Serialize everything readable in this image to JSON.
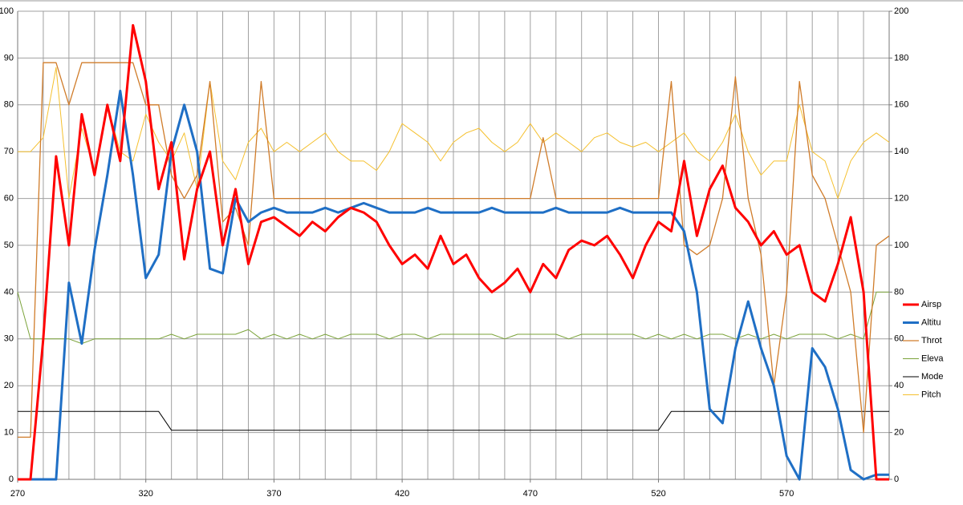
{
  "chart_data": {
    "type": "line",
    "x": [
      270,
      275,
      280,
      285,
      290,
      295,
      300,
      305,
      310,
      315,
      320,
      325,
      330,
      335,
      340,
      345,
      350,
      355,
      360,
      365,
      370,
      375,
      380,
      385,
      390,
      395,
      400,
      405,
      410,
      415,
      420,
      425,
      430,
      435,
      440,
      445,
      450,
      455,
      460,
      465,
      470,
      475,
      480,
      485,
      490,
      495,
      500,
      505,
      510,
      515,
      520,
      525,
      530,
      535,
      540,
      545,
      550,
      555,
      560,
      565,
      570,
      575,
      580,
      585,
      590,
      595,
      600,
      605,
      610
    ],
    "xlim": [
      270,
      610
    ],
    "xticks": [
      270,
      320,
      370,
      420,
      470,
      520,
      570
    ],
    "xgrid": [
      270,
      280,
      290,
      300,
      310,
      320,
      330,
      340,
      350,
      360,
      370,
      380,
      390,
      400,
      410,
      420,
      430,
      440,
      450,
      460,
      470,
      480,
      490,
      500,
      510,
      520,
      530,
      540,
      550,
      560,
      570,
      580,
      590,
      600
    ],
    "ylim": [
      0,
      100
    ],
    "yticks": [
      0,
      10,
      20,
      30,
      40,
      50,
      60,
      70,
      80,
      90,
      100
    ],
    "y2lim": [
      0,
      200
    ],
    "y2ticks": [
      0,
      20,
      40,
      60,
      80,
      100,
      120,
      140,
      160,
      180,
      200
    ],
    "grid": true,
    "legend": "right",
    "series": [
      {
        "name": "Airsp",
        "color": "#ff0000",
        "width": 3,
        "values": [
          0,
          0,
          30,
          69,
          50,
          78,
          65,
          80,
          68,
          97,
          85,
          62,
          72,
          47,
          62,
          70,
          50,
          62,
          46,
          55,
          56,
          54,
          52,
          55,
          53,
          56,
          58,
          57,
          55,
          50,
          46,
          48,
          45,
          52,
          46,
          48,
          43,
          40,
          42,
          45,
          40,
          46,
          43,
          49,
          51,
          50,
          52,
          48,
          43,
          50,
          55,
          53,
          68,
          52,
          62,
          67,
          58,
          55,
          50,
          53,
          48,
          50,
          40,
          38,
          46,
          56,
          40,
          0,
          0
        ]
      },
      {
        "name": "Altitu",
        "color": "#1f6fc5",
        "width": 3,
        "axis": "y2",
        "values": [
          0,
          0,
          0,
          0,
          84,
          58,
          98,
          130,
          166,
          130,
          86,
          96,
          140,
          160,
          140,
          90,
          88,
          120,
          110,
          114,
          116,
          114,
          114,
          114,
          116,
          114,
          116,
          118,
          116,
          114,
          114,
          114,
          116,
          114,
          114,
          114,
          114,
          116,
          114,
          114,
          114,
          114,
          116,
          114,
          114,
          114,
          114,
          116,
          114,
          114,
          114,
          114,
          106,
          80,
          30,
          24,
          56,
          76,
          56,
          40,
          10,
          0,
          56,
          48,
          30,
          4,
          0,
          2,
          2
        ]
      },
      {
        "name": "Throt",
        "color": "#d07c2a",
        "width": 1.3,
        "values": [
          9,
          9,
          89,
          89,
          80,
          89,
          89,
          89,
          89,
          89,
          80,
          80,
          65,
          60,
          65,
          85,
          55,
          58,
          50,
          85,
          60,
          60,
          60,
          60,
          60,
          60,
          60,
          60,
          60,
          60,
          60,
          60,
          60,
          60,
          60,
          60,
          60,
          60,
          60,
          60,
          60,
          73,
          60,
          60,
          60,
          60,
          60,
          60,
          60,
          60,
          60,
          85,
          50,
          48,
          50,
          60,
          86,
          60,
          48,
          20,
          40,
          85,
          65,
          60,
          50,
          40,
          10,
          50,
          52
        ]
      },
      {
        "name": "Eleva",
        "color": "#7ba33a",
        "width": 1,
        "values": [
          40,
          30,
          30,
          30,
          30,
          29,
          30,
          30,
          30,
          30,
          30,
          30,
          31,
          30,
          31,
          31,
          31,
          31,
          32,
          30,
          31,
          30,
          31,
          30,
          31,
          30,
          31,
          31,
          31,
          30,
          31,
          31,
          30,
          31,
          31,
          31,
          31,
          31,
          30,
          31,
          31,
          31,
          31,
          30,
          31,
          31,
          31,
          31,
          31,
          30,
          31,
          30,
          31,
          30,
          31,
          31,
          30,
          31,
          30,
          31,
          30,
          31,
          31,
          31,
          30,
          31,
          30,
          40,
          40
        ]
      },
      {
        "name": "Mode",
        "color": "#000000",
        "width": 1,
        "values": [
          14.5,
          14.5,
          14.5,
          14.5,
          14.5,
          14.5,
          14.5,
          14.5,
          14.5,
          14.5,
          14.5,
          14.5,
          10.5,
          10.5,
          10.5,
          10.5,
          10.5,
          10.5,
          10.5,
          10.5,
          10.5,
          10.5,
          10.5,
          10.5,
          10.5,
          10.5,
          10.5,
          10.5,
          10.5,
          10.5,
          10.5,
          10.5,
          10.5,
          10.5,
          10.5,
          10.5,
          10.5,
          10.5,
          10.5,
          10.5,
          10.5,
          10.5,
          10.5,
          10.5,
          10.5,
          10.5,
          10.5,
          10.5,
          10.5,
          10.5,
          10.5,
          14.5,
          14.5,
          14.5,
          14.5,
          14.5,
          14.5,
          14.5,
          14.5,
          14.5,
          14.5,
          14.5,
          14.5,
          14.5,
          14.5,
          14.5,
          14.5,
          14.5,
          14.5
        ]
      },
      {
        "name": "Pitch",
        "color": "#f5c02e",
        "width": 1,
        "values": [
          70,
          70,
          73,
          88,
          60,
          75,
          66,
          80,
          70,
          68,
          78,
          72,
          68,
          74,
          62,
          85,
          68,
          64,
          72,
          75,
          70,
          72,
          70,
          72,
          74,
          70,
          68,
          68,
          66,
          70,
          76,
          74,
          72,
          68,
          72,
          74,
          75,
          72,
          70,
          72,
          76,
          72,
          74,
          72,
          70,
          73,
          74,
          72,
          71,
          72,
          70,
          72,
          74,
          70,
          68,
          72,
          78,
          70,
          65,
          68,
          68,
          80,
          70,
          68,
          60,
          68,
          72,
          74,
          72
        ]
      }
    ]
  }
}
